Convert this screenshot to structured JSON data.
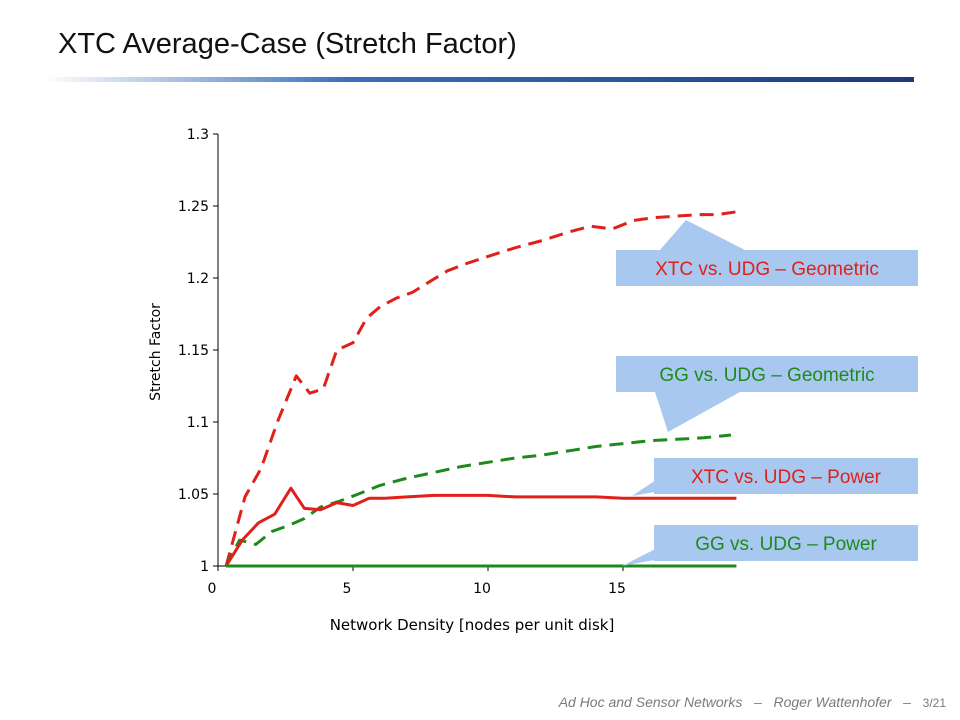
{
  "slide": {
    "title": "XTC Average-Case (Stretch Factor)",
    "footer_left": "Ad Hoc and Sensor Networks",
    "footer_sep": "–",
    "footer_author": "Roger Wattenhofer",
    "footer_page": "3/21"
  },
  "colors": {
    "title_rule_start": "#ffffff",
    "title_rule_mid": "#3a6fbf",
    "title_rule_end": "#1c3a78",
    "callout_fill": "#a9c8f0",
    "xtc": "#e0201a",
    "gg": "#1e8a1e"
  },
  "chart_data": {
    "type": "line",
    "title": "",
    "xlabel": "Network Density [nodes per unit disk]",
    "ylabel": "Stretch Factor",
    "xlim": [
      0,
      20
    ],
    "ylim": [
      1,
      1.3
    ],
    "xticks": [
      0,
      5,
      10,
      15
    ],
    "yticks": [
      1,
      1.05,
      1.1,
      1.15,
      1.2,
      1.25,
      1.3
    ],
    "ytick_labels": [
      "1",
      "1.05",
      "1.1",
      "1.15",
      "1.2",
      "1.25",
      "1.3"
    ],
    "grid": false,
    "legend": "callouts",
    "series": [
      {
        "name": "XTC vs. UDG – Geometric",
        "color": "#e0201a",
        "style": "dashed",
        "x": [
          0.3,
          1.0,
          1.6,
          2.2,
          2.9,
          3.4,
          3.9,
          4.4,
          5.0,
          5.5,
          6.0,
          6.6,
          7.2,
          7.8,
          8.5,
          9.2,
          10.0,
          11.0,
          12.0,
          13.0,
          13.8,
          14.6,
          15.4,
          16.2,
          17.0,
          17.8,
          18.5,
          19.2
        ],
        "y": [
          1.0,
          1.048,
          1.068,
          1.1,
          1.132,
          1.12,
          1.123,
          1.15,
          1.155,
          1.172,
          1.18,
          1.186,
          1.19,
          1.197,
          1.205,
          1.21,
          1.215,
          1.221,
          1.226,
          1.232,
          1.236,
          1.234,
          1.24,
          1.242,
          1.243,
          1.244,
          1.244,
          1.246
        ]
      },
      {
        "name": "GG vs. UDG – Geometric",
        "color": "#1e8a1e",
        "style": "dashed",
        "x": [
          0.3,
          0.8,
          1.4,
          2.0,
          2.6,
          3.2,
          3.8,
          4.5,
          5.2,
          6.0,
          7.0,
          8.0,
          9.0,
          10.0,
          11.0,
          12.0,
          13.0,
          14.0,
          15.0,
          16.0,
          17.0,
          18.0,
          19.0
        ],
        "y": [
          1.0,
          1.018,
          1.015,
          1.024,
          1.028,
          1.033,
          1.041,
          1.045,
          1.05,
          1.056,
          1.061,
          1.065,
          1.069,
          1.072,
          1.075,
          1.077,
          1.08,
          1.083,
          1.085,
          1.087,
          1.088,
          1.089,
          1.091
        ]
      },
      {
        "name": "XTC vs. UDG – Power",
        "color": "#e0201a",
        "style": "solid",
        "x": [
          0.3,
          0.9,
          1.5,
          2.1,
          2.7,
          3.2,
          3.8,
          4.4,
          5.0,
          5.6,
          6.2,
          7.0,
          8.0,
          9.0,
          10.0,
          11.0,
          12.0,
          13.0,
          14.0,
          15.0,
          16.0,
          17.0,
          18.0,
          19.2
        ],
        "y": [
          1.0,
          1.018,
          1.03,
          1.036,
          1.054,
          1.04,
          1.039,
          1.044,
          1.042,
          1.047,
          1.047,
          1.048,
          1.049,
          1.049,
          1.049,
          1.048,
          1.048,
          1.048,
          1.048,
          1.047,
          1.047,
          1.047,
          1.047,
          1.047
        ]
      },
      {
        "name": "GG vs. UDG – Power",
        "color": "#1e8a1e",
        "style": "solid",
        "x": [
          0.3,
          19.2
        ],
        "y": [
          1.0,
          1.0
        ]
      }
    ]
  }
}
